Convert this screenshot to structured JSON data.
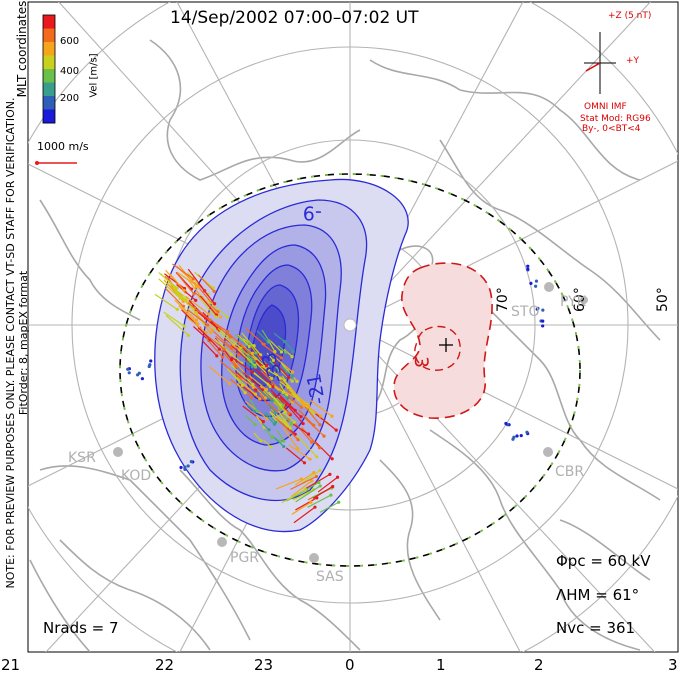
{
  "title": "14/Sep/2002 07:00–07:02 UT",
  "note": {
    "line1": "NOTE: FOR PREVIEW PURPOSES ONLY. PLEASE CONTACT VT-SD STAFF FOR VERIFICATION.",
    "line2": "FitOrder: 8, mapEX format"
  },
  "coords_label": "MLT coordinates",
  "colorbar": {
    "label": "Vel [m/s]",
    "ticks": [
      "600",
      "400",
      "200"
    ],
    "colors": [
      "#e8181c",
      "#f26a1b",
      "#f7a41d",
      "#c8d11e",
      "#6cc04a",
      "#3a9e8e",
      "#2e5fb8",
      "#1a1adb"
    ]
  },
  "vector_scale": "1000 m/s",
  "imf": {
    "z_label": "+Z (5 nT)",
    "y_label": "+Y",
    "source": "OMNI IMF",
    "model": "Stat Mod: RG96",
    "condition": "By-, 0<BT<4"
  },
  "latitude_labels": [
    "70°",
    "60°",
    "50°"
  ],
  "stations": [
    "STO",
    "PYK",
    "CBR",
    "KSR",
    "KOD",
    "PGR",
    "SAS"
  ],
  "contour_labels": [
    "-9",
    "-33",
    "-21",
    "3"
  ],
  "stats": {
    "phi_pc": "Φpc = 60 kV",
    "lambda_hm": "ΛHM = 61°",
    "n_vc": "Nvc = 361",
    "n_rads": "Nrads = 7"
  },
  "mlt_axis": [
    "21",
    "22",
    "23",
    "0",
    "1",
    "2",
    "3"
  ],
  "potential": {
    "min_kV": -33,
    "max_kV": 3,
    "negative_color": "#2a2ad6",
    "positive_color": "#d01818"
  }
}
